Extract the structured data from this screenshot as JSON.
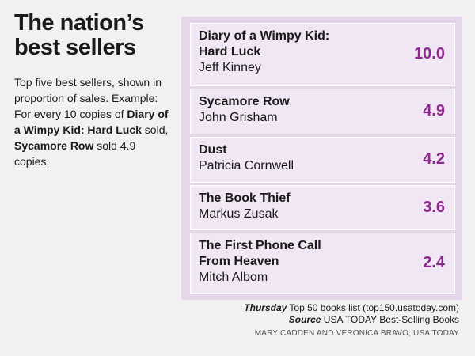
{
  "headline": [
    "The nation’s",
    "best sellers"
  ],
  "intro": {
    "p1": "Top five best sellers, shown in proportion of sales. Example: For every 10 copies of ",
    "b1": "Diary of a Wimpy Kid: Hard Luck",
    "p2": " sold, ",
    "b2": "Sycamore Row",
    "p3": " sold 4.9 copies."
  },
  "chart_data": {
    "type": "bar",
    "categories": [
      "Diary of a Wimpy Kid: Hard Luck",
      "Sycamore Row",
      "Dust",
      "The Book Thief",
      "The First Phone Call From Heaven"
    ],
    "values": [
      10.0,
      4.9,
      4.2,
      3.6,
      2.4
    ],
    "value_labels": [
      "10.0",
      "4.9",
      "4.2",
      "3.6",
      "2.4"
    ],
    "books": [
      {
        "title_lines": [
          "Diary of a Wimpy Kid:",
          "Hard Luck"
        ],
        "author": "Jeff Kinney",
        "value": 10.0,
        "label": "10.0"
      },
      {
        "title_lines": [
          "Sycamore Row"
        ],
        "author": "John Grisham",
        "value": 4.9,
        "label": "4.9"
      },
      {
        "title_lines": [
          "Dust"
        ],
        "author": "Patricia Cornwell",
        "value": 4.2,
        "label": "4.2"
      },
      {
        "title_lines": [
          "The Book Thief"
        ],
        "author": "Markus Zusak",
        "value": 3.6,
        "label": "3.6"
      },
      {
        "title_lines": [
          "The First Phone Call",
          "From Heaven"
        ],
        "author": "Mitch Albom",
        "value": 2.4,
        "label": "2.4"
      }
    ],
    "colors": {
      "bar": "#f1e6f3",
      "panel": "#e6d6ea",
      "value": "#8a2a8c"
    }
  },
  "credits": {
    "line1_label": "Thursday",
    "line1_text": " Top 50 books list (top150.usatoday.com)",
    "line2_label": "Source",
    "line2_text": " USA TODAY Best-Selling Books",
    "byline": "MARY CADDEN AND VERONICA BRAVO, USA TODAY"
  }
}
